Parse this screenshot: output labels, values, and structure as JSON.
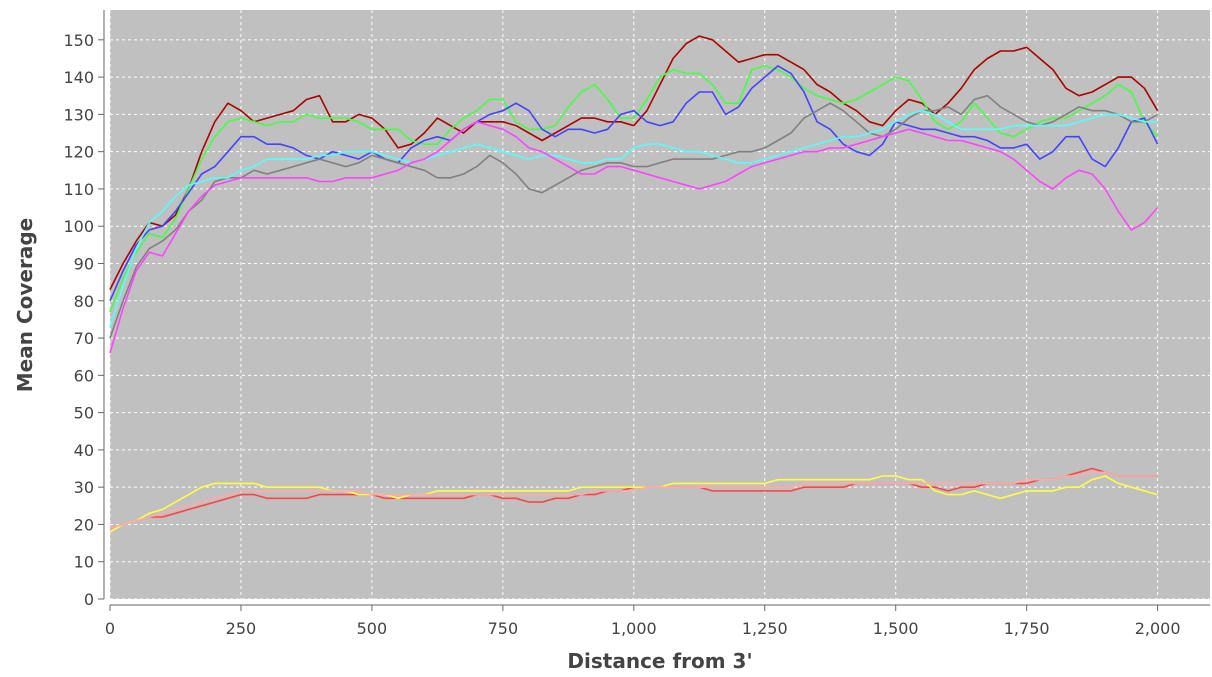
{
  "chart_data": {
    "type": "line",
    "title": "",
    "xlabel": "Distance from 3'",
    "ylabel": "Mean Coverage",
    "xlim": [
      0,
      2100
    ],
    "ylim": [
      0,
      158
    ],
    "x_ticks": [
      0,
      250,
      500,
      750,
      1000,
      1250,
      1500,
      1750,
      2000
    ],
    "x_tick_labels": [
      "0",
      "250",
      "500",
      "750",
      "1,000",
      "1,250",
      "1,500",
      "1,750",
      "2,000"
    ],
    "y_ticks": [
      0,
      10,
      20,
      30,
      40,
      50,
      60,
      70,
      80,
      90,
      100,
      110,
      120,
      130,
      140,
      150
    ],
    "y_tick_labels": [
      "0",
      "10",
      "20",
      "30",
      "40",
      "50",
      "60",
      "70",
      "80",
      "90",
      "100",
      "110",
      "120",
      "130",
      "140",
      "150"
    ],
    "grid": true,
    "background": "#c0c0c0",
    "legend": "none",
    "x": [
      0,
      25,
      50,
      75,
      100,
      125,
      150,
      175,
      200,
      225,
      250,
      275,
      300,
      325,
      350,
      375,
      400,
      425,
      450,
      475,
      500,
      525,
      550,
      575,
      600,
      625,
      650,
      675,
      700,
      725,
      750,
      775,
      800,
      825,
      850,
      875,
      900,
      925,
      950,
      975,
      1000,
      1025,
      1050,
      1075,
      1100,
      1125,
      1150,
      1175,
      1200,
      1225,
      1250,
      1275,
      1300,
      1325,
      1350,
      1375,
      1400,
      1425,
      1450,
      1475,
      1500,
      1525,
      1550,
      1575,
      1600,
      1625,
      1650,
      1675,
      1700,
      1725,
      1750,
      1775,
      1800,
      1825,
      1850,
      1875,
      1900,
      1925,
      1950,
      1975,
      2000
    ],
    "series": [
      {
        "color": "#aa0000",
        "values": [
          83,
          90,
          96,
          101,
          100,
          103,
          110,
          120,
          128,
          133,
          131,
          128,
          129,
          130,
          131,
          134,
          135,
          128,
          128,
          130,
          129,
          126,
          121,
          122,
          125,
          129,
          127,
          125,
          128,
          128,
          128,
          127,
          125,
          123,
          125,
          127,
          129,
          129,
          128,
          128,
          127,
          131,
          138,
          145,
          149,
          151,
          150,
          147,
          144,
          145,
          146,
          146,
          144,
          142,
          138,
          136,
          133,
          131,
          128,
          127,
          131,
          134,
          133,
          130,
          133,
          137,
          142,
          145,
          147,
          147,
          148,
          145,
          142,
          137,
          135,
          136,
          138,
          140,
          140,
          137,
          131
        ]
      },
      {
        "color": "#44ff44",
        "values": [
          77,
          86,
          93,
          98,
          97,
          102,
          110,
          118,
          124,
          128,
          129,
          128,
          127,
          128,
          128,
          130,
          129,
          129,
          129,
          128,
          126,
          126,
          126,
          123,
          122,
          122,
          126,
          129,
          131,
          134,
          134,
          128,
          126,
          126,
          127,
          132,
          136,
          138,
          134,
          129,
          129,
          134,
          140,
          142,
          141,
          141,
          138,
          133,
          133,
          142,
          143,
          142,
          140,
          137,
          135,
          134,
          133,
          134,
          136,
          138,
          140,
          139,
          134,
          128,
          126,
          128,
          133,
          129,
          125,
          124,
          126,
          128,
          129,
          129,
          131,
          133,
          135,
          138,
          136,
          128,
          124
        ]
      },
      {
        "color": "#4444ff",
        "values": [
          80,
          88,
          95,
          99,
          100,
          104,
          109,
          114,
          116,
          120,
          124,
          124,
          122,
          122,
          121,
          119,
          118,
          120,
          119,
          118,
          120,
          118,
          117,
          121,
          123,
          124,
          123,
          126,
          128,
          130,
          131,
          133,
          131,
          126,
          124,
          126,
          126,
          125,
          126,
          130,
          131,
          128,
          127,
          128,
          133,
          136,
          136,
          130,
          132,
          137,
          140,
          143,
          141,
          136,
          128,
          126,
          122,
          120,
          119,
          122,
          128,
          127,
          126,
          126,
          125,
          124,
          124,
          123,
          121,
          121,
          122,
          118,
          120,
          124,
          124,
          118,
          116,
          121,
          128,
          129,
          122
        ]
      },
      {
        "color": "#808080",
        "values": [
          70,
          80,
          89,
          94,
          96,
          99,
          104,
          107,
          112,
          113,
          113,
          115,
          114,
          115,
          116,
          117,
          118,
          117,
          116,
          117,
          119,
          118,
          117,
          116,
          115,
          113,
          113,
          114,
          116,
          119,
          117,
          114,
          110,
          109,
          111,
          113,
          115,
          116,
          117,
          117,
          116,
          116,
          117,
          118,
          118,
          118,
          118,
          119,
          120,
          120,
          121,
          123,
          125,
          129,
          131,
          133,
          131,
          128,
          125,
          124,
          126,
          129,
          131,
          131,
          132,
          130,
          134,
          135,
          132,
          130,
          128,
          127,
          128,
          130,
          132,
          131,
          131,
          130,
          128,
          128,
          130
        ]
      },
      {
        "color": "#55ffff",
        "values": [
          73,
          84,
          94,
          101,
          104,
          108,
          111,
          112,
          113,
          113,
          115,
          116,
          118,
          118,
          118,
          118,
          119,
          119,
          120,
          120,
          120,
          119,
          118,
          117,
          118,
          119,
          120,
          121,
          122,
          121,
          120,
          119,
          118,
          119,
          119,
          118,
          117,
          117,
          118,
          118,
          121,
          122,
          122,
          121,
          120,
          120,
          119,
          118,
          117,
          117,
          118,
          119,
          120,
          121,
          122,
          123,
          124,
          124,
          125,
          126,
          128,
          130,
          131,
          130,
          128,
          126,
          126,
          126,
          126,
          127,
          127,
          127,
          127,
          127,
          128,
          129,
          130,
          130,
          129,
          128,
          128
        ]
      },
      {
        "color": "#ff44ff",
        "values": [
          66,
          78,
          88,
          93,
          92,
          98,
          104,
          108,
          111,
          112,
          113,
          113,
          113,
          113,
          113,
          113,
          112,
          112,
          113,
          113,
          113,
          114,
          115,
          117,
          118,
          120,
          123,
          126,
          128,
          127,
          126,
          124,
          121,
          120,
          118,
          116,
          114,
          114,
          116,
          116,
          115,
          114,
          113,
          112,
          111,
          110,
          111,
          112,
          114,
          116,
          117,
          118,
          119,
          120,
          120,
          121,
          121,
          122,
          123,
          124,
          125,
          126,
          125,
          124,
          123,
          123,
          122,
          121,
          120,
          118,
          115,
          112,
          110,
          113,
          115,
          114,
          110,
          104,
          99,
          101,
          105
        ]
      },
      {
        "color": "#ff4444",
        "values": [
          19,
          20,
          21,
          22,
          22,
          23,
          24,
          25,
          26,
          27,
          28,
          28,
          27,
          27,
          27,
          27,
          28,
          28,
          28,
          28,
          28,
          27,
          27,
          27,
          27,
          27,
          27,
          27,
          28,
          28,
          27,
          27,
          26,
          26,
          27,
          27,
          28,
          28,
          29,
          29,
          30,
          30,
          30,
          30,
          30,
          30,
          29,
          29,
          29,
          29,
          29,
          29,
          29,
          30,
          30,
          30,
          30,
          31,
          31,
          31,
          31,
          31,
          30,
          30,
          29,
          30,
          30,
          31,
          31,
          31,
          31,
          32,
          32,
          33,
          34,
          35,
          34,
          33,
          33,
          33,
          33
        ]
      },
      {
        "color": "#ffff44",
        "values": [
          18,
          20,
          21,
          23,
          24,
          26,
          28,
          30,
          31,
          31,
          31,
          31,
          30,
          30,
          30,
          30,
          30,
          29,
          29,
          28,
          28,
          28,
          27,
          28,
          28,
          29,
          29,
          29,
          29,
          29,
          29,
          29,
          29,
          29,
          29,
          29,
          30,
          30,
          30,
          30,
          30,
          30,
          30,
          31,
          31,
          31,
          31,
          31,
          31,
          31,
          31,
          32,
          32,
          32,
          32,
          32,
          32,
          32,
          32,
          33,
          33,
          32,
          32,
          29,
          28,
          28,
          29,
          28,
          27,
          28,
          29,
          29,
          29,
          30,
          30,
          32,
          33,
          31,
          30,
          29,
          28
        ]
      },
      {
        "color": "#ffaaaa",
        "values": [
          19,
          20,
          21,
          22,
          23,
          24,
          25,
          26,
          27,
          28,
          29,
          29,
          29,
          29,
          29,
          29,
          29,
          29,
          29,
          29,
          28,
          28,
          28,
          28,
          28,
          28,
          28,
          28,
          28,
          28,
          28,
          28,
          28,
          28,
          28,
          28,
          28,
          29,
          29,
          29,
          29,
          30,
          30,
          30,
          30,
          30,
          30,
          30,
          30,
          30,
          30,
          30,
          30,
          31,
          31,
          31,
          31,
          31,
          31,
          31,
          31,
          31,
          31,
          31,
          31,
          31,
          31,
          31,
          31,
          31,
          32,
          32,
          32,
          33,
          33,
          34,
          34,
          33,
          33,
          33,
          33
        ]
      }
    ]
  }
}
